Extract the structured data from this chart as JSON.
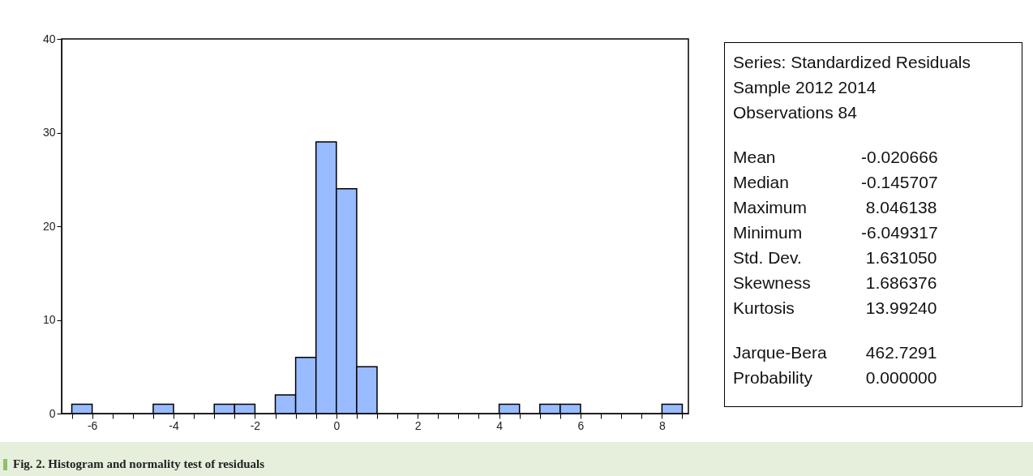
{
  "chart_data": {
    "type": "histogram",
    "bins": [
      -6.5,
      -6,
      -5.5,
      -5,
      -4.5,
      -4,
      -3.5,
      -3,
      -2.5,
      -2,
      -1.5,
      -1,
      -0.5,
      0,
      0.5,
      1,
      1.5,
      2,
      2.5,
      3,
      3.5,
      4,
      4.5,
      5,
      5.5,
      6,
      6.5,
      7,
      7.5,
      8,
      8.5
    ],
    "values": [
      1,
      0,
      0,
      0,
      1,
      0,
      0,
      1,
      1,
      0,
      2,
      6,
      29,
      24,
      5,
      0,
      0,
      0,
      0,
      0,
      0,
      1,
      0,
      1,
      1,
      0,
      0,
      0,
      0,
      1
    ],
    "color": "#99bbff",
    "xlim": [
      -6.75,
      8.65
    ],
    "xticks": [
      {
        "value": -6.5,
        "label": null
      },
      -6,
      {
        "value": -5.5,
        "label": null
      },
      {
        "value": -5,
        "label": null
      },
      {
        "value": -4.5,
        "label": null
      },
      -4,
      {
        "value": -3.5,
        "label": null
      },
      {
        "value": -3,
        "label": null
      },
      {
        "value": -2.5,
        "label": null
      },
      -2,
      {
        "value": -1.5,
        "label": null
      },
      {
        "value": -1,
        "label": null
      },
      {
        "value": -0.5,
        "label": null
      },
      0,
      {
        "value": 0.5,
        "label": null
      },
      {
        "value": 1,
        "label": null
      },
      {
        "value": 1.5,
        "label": null
      },
      2,
      {
        "value": 2.5,
        "label": null
      },
      {
        "value": 3,
        "label": null
      },
      {
        "value": 3.5,
        "label": null
      },
      4,
      {
        "value": 4.5,
        "label": null
      },
      {
        "value": 5,
        "label": null
      },
      {
        "value": 5.5,
        "label": null
      },
      6,
      {
        "value": 6.5,
        "label": null
      },
      {
        "value": 7,
        "label": null
      },
      {
        "value": 7.5,
        "label": null
      },
      8,
      {
        "value": 8.5,
        "label": null
      }
    ],
    "ylim": [
      0,
      40
    ],
    "yticks": [
      0,
      10,
      20,
      30,
      40
    ],
    "grid": false,
    "annotations": [
      "Series: Standardized Residuals",
      "Sample 2012 2014",
      "Observations 84",
      "Mean\t-0.020666",
      "Median\t-0.145707",
      "Maximum\t 8.046138",
      "Minimum\t-6.049317",
      "Std. Dev.\t 1.631050",
      "Skewness\t 1.686376",
      "Kurtosis\t 13.99240",
      "Jarque-Bera\t 462.7291",
      "Probability\t 0.000000",
      "Fig. 2.  Histogram and normality test of residuals"
    ]
  }
}
